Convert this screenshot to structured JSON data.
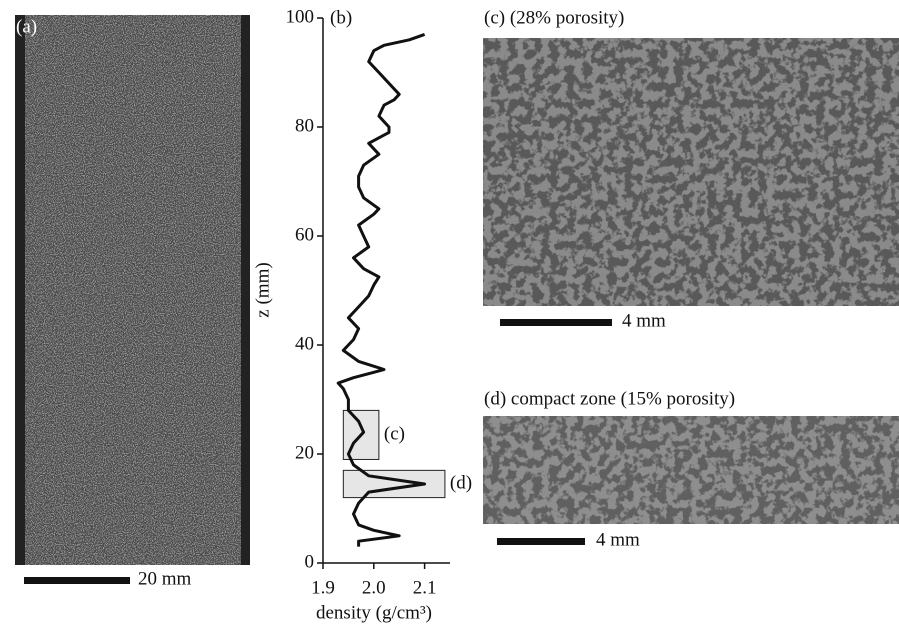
{
  "panels": {
    "a": {
      "label": "(a)",
      "scale": "20 mm"
    },
    "c": {
      "label": "(c) (28% porosity)",
      "scale": "4 mm"
    },
    "d": {
      "label": "(d) compact zone (15% porosity)",
      "scale": "4 mm"
    }
  },
  "chart_data": {
    "type": "line",
    "panel_label": "(b)",
    "xlabel": "density (g/cm³)",
    "ylabel": "z (mm)",
    "x": [
      1.97,
      1.97,
      2.05,
      2.0,
      1.97,
      1.96,
      1.97,
      1.99,
      2.1,
      1.99,
      1.96,
      1.95,
      1.96,
      1.98,
      1.97,
      1.95,
      1.95,
      1.94,
      1.93,
      1.96,
      2.0,
      2.02,
      1.97,
      1.94,
      1.96,
      1.97,
      1.95,
      1.97,
      1.99,
      2.0,
      2.01,
      1.98,
      1.96,
      1.99,
      1.98,
      1.97,
      2.0,
      2.01,
      1.98,
      1.97,
      1.97,
      1.98,
      2.01,
      1.99,
      2.03,
      2.03,
      2.01,
      2.02,
      2.04,
      2.05,
      2.03,
      2.01,
      1.99,
      2.0,
      2.02,
      2.07,
      2.1
    ],
    "values": [
      3,
      4,
      5,
      6,
      7,
      9,
      11,
      13,
      14.5,
      16,
      18,
      20,
      22,
      24,
      26,
      28,
      30,
      32,
      33,
      34,
      35,
      35.5,
      37,
      39,
      41,
      43,
      45,
      47,
      49,
      51,
      52.5,
      54,
      56,
      58,
      60,
      62,
      64,
      65,
      67,
      69,
      71,
      73,
      75,
      77,
      79,
      80,
      82,
      84,
      85,
      86,
      88,
      90,
      92,
      94,
      95,
      96,
      97
    ],
    "color": "#111111",
    "xlim": [
      1.9,
      2.15
    ],
    "ylim": [
      0,
      100
    ],
    "xticks": [
      1.9,
      {
        "value": 2,
        "label": "2.0"
      },
      2.1
    ],
    "yticks": [
      0,
      20,
      40,
      60,
      80,
      100
    ],
    "regions": [
      {
        "label": "(c)",
        "xlim": [
          1.94,
          2.01
        ],
        "ylim": [
          19,
          28
        ]
      },
      {
        "label": "(d)",
        "xlim": [
          1.94,
          2.14
        ],
        "ylim": [
          12,
          17
        ]
      }
    ]
  }
}
